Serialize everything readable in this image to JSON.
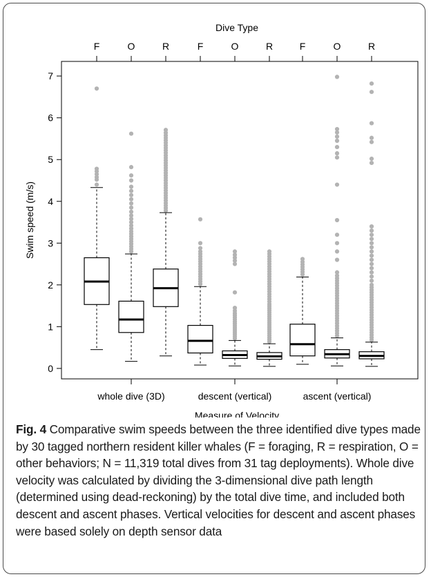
{
  "caption": {
    "label": "Fig. 4",
    "text": "Comparative swim speeds between the three identified dive types made by 30 tagged northern resident killer whales (F = foraging, R = respiration, O = other behaviors; N = 11,319 total dives from 31 tag deployments). Whole dive velocity was calculated by dividing the 3-dimensional dive path length (determined using dead-reckoning) by the total dive time, and included both descent and ascent phases. Vertical velocities for descent and ascent phases were based solely on depth sensor data"
  },
  "chart_data": {
    "type": "boxplot",
    "title": "",
    "top_axis_label": "Dive Type",
    "xlabel": "Measure of Velocity",
    "ylabel": "Swim speed (m/s)",
    "ylim": [
      -0.25,
      7.35
    ],
    "yticks": [
      0,
      1,
      2,
      3,
      4,
      5,
      6,
      7
    ],
    "groups": [
      "whole dive (3D)",
      "descent (vertical)",
      "ascent (vertical)"
    ],
    "dive_types": [
      "F",
      "O",
      "R"
    ],
    "grid": false,
    "outlier_color": "#b3b3b3",
    "boxes": [
      {
        "group": "whole dive (3D)",
        "dive_type": "F",
        "whisker_low": 0.45,
        "q1": 1.53,
        "median": 2.08,
        "q3": 2.65,
        "whisker_high": 4.33,
        "outliers": [
          4.4,
          4.52,
          4.58,
          4.65,
          4.72,
          4.78,
          6.7
        ]
      },
      {
        "group": "whole dive (3D)",
        "dive_type": "O",
        "whisker_low": 0.17,
        "q1": 0.86,
        "median": 1.17,
        "q3": 1.61,
        "whisker_high": 2.74,
        "outliers": [
          2.8,
          2.86,
          2.92,
          2.98,
          3.04,
          3.1,
          3.16,
          3.22,
          3.28,
          3.35,
          3.42,
          3.5,
          3.58,
          3.66,
          3.75,
          3.85,
          3.95,
          4.05,
          4.15,
          4.25,
          4.35,
          4.5,
          4.62,
          4.82,
          5.62
        ]
      },
      {
        "group": "whole dive (3D)",
        "dive_type": "R",
        "whisker_low": 0.3,
        "q1": 1.48,
        "median": 1.92,
        "q3": 2.38,
        "whisker_high": 3.73,
        "outliers": [
          3.78,
          3.84,
          3.9,
          3.96,
          4.02,
          4.08,
          4.14,
          4.2,
          4.26,
          4.32,
          4.38,
          4.44,
          4.5,
          4.56,
          4.62,
          4.68,
          4.74,
          4.8,
          4.86,
          4.92,
          4.98,
          5.04,
          5.1,
          5.16,
          5.22,
          5.28,
          5.34,
          5.4,
          5.46,
          5.52,
          5.58,
          5.64,
          5.71
        ]
      },
      {
        "group": "descent (vertical)",
        "dive_type": "F",
        "whisker_low": 0.08,
        "q1": 0.37,
        "median": 0.66,
        "q3": 1.03,
        "whisker_high": 1.96,
        "outliers": [
          2.02,
          2.08,
          2.14,
          2.2,
          2.26,
          2.32,
          2.38,
          2.44,
          2.5,
          2.56,
          2.62,
          2.68,
          2.74,
          2.8,
          2.88,
          3.0,
          3.57
        ]
      },
      {
        "group": "descent (vertical)",
        "dive_type": "O",
        "whisker_low": 0.06,
        "q1": 0.24,
        "median": 0.32,
        "q3": 0.42,
        "whisker_high": 0.67,
        "outliers": [
          0.72,
          0.77,
          0.82,
          0.87,
          0.92,
          0.97,
          1.02,
          1.07,
          1.12,
          1.17,
          1.22,
          1.27,
          1.32,
          1.38,
          1.45,
          1.82,
          2.5,
          2.58,
          2.65,
          2.72,
          2.8
        ]
      },
      {
        "group": "descent (vertical)",
        "dive_type": "R",
        "whisker_low": 0.05,
        "q1": 0.22,
        "median": 0.29,
        "q3": 0.38,
        "whisker_high": 0.59,
        "outliers": [
          0.64,
          0.69,
          0.74,
          0.79,
          0.84,
          0.89,
          0.94,
          0.99,
          1.04,
          1.09,
          1.14,
          1.19,
          1.24,
          1.29,
          1.34,
          1.39,
          1.44,
          1.49,
          1.54,
          1.6,
          1.66,
          1.72,
          1.78,
          1.84,
          1.9,
          1.96,
          2.02,
          2.08,
          2.14,
          2.2,
          2.26,
          2.32,
          2.38,
          2.44,
          2.5,
          2.56,
          2.62,
          2.68,
          2.74,
          2.8
        ]
      },
      {
        "group": "ascent (vertical)",
        "dive_type": "F",
        "whisker_low": 0.1,
        "q1": 0.3,
        "median": 0.58,
        "q3": 1.06,
        "whisker_high": 2.19,
        "outliers": [
          2.25,
          2.31,
          2.37,
          2.43,
          2.49,
          2.55,
          2.62
        ]
      },
      {
        "group": "ascent (vertical)",
        "dive_type": "O",
        "whisker_low": 0.06,
        "q1": 0.25,
        "median": 0.34,
        "q3": 0.45,
        "whisker_high": 0.73,
        "outliers": [
          0.78,
          0.84,
          0.9,
          0.96,
          1.02,
          1.08,
          1.14,
          1.2,
          1.26,
          1.32,
          1.38,
          1.44,
          1.5,
          1.56,
          1.62,
          1.68,
          1.74,
          1.8,
          1.86,
          1.92,
          1.98,
          2.04,
          2.1,
          2.16,
          2.22,
          2.3,
          2.6,
          2.8,
          3.0,
          3.2,
          3.55,
          4.4,
          5.05,
          5.15,
          5.3,
          5.45,
          5.55,
          5.65,
          5.73,
          6.98
        ]
      },
      {
        "group": "ascent (vertical)",
        "dive_type": "R",
        "whisker_low": 0.05,
        "q1": 0.23,
        "median": 0.3,
        "q3": 0.4,
        "whisker_high": 0.63,
        "outliers": [
          0.68,
          0.74,
          0.8,
          0.86,
          0.92,
          0.98,
          1.04,
          1.1,
          1.16,
          1.22,
          1.28,
          1.34,
          1.4,
          1.46,
          1.52,
          1.58,
          1.64,
          1.7,
          1.76,
          1.82,
          1.88,
          1.94,
          2.0,
          2.1,
          2.2,
          2.3,
          2.4,
          2.5,
          2.6,
          2.7,
          2.8,
          2.9,
          3.0,
          3.1,
          3.2,
          3.3,
          3.4,
          4.92,
          5.02,
          5.42,
          5.52,
          5.87,
          6.62,
          6.82
        ]
      }
    ]
  }
}
